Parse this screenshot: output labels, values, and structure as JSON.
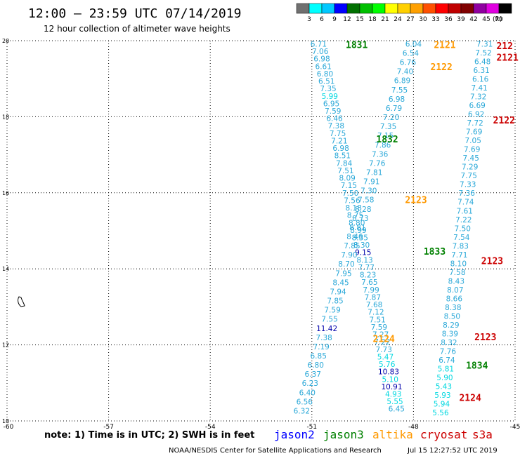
{
  "header": {
    "title": "12:00 — 23:59 UTC 07/14/2019",
    "subtitle": "12 hour collection of altimeter wave heights"
  },
  "colorbar": {
    "unit": "(ft)",
    "colors": [
      "#707070",
      "#00ffff",
      "#00c8ff",
      "#0000ff",
      "#007000",
      "#00c000",
      "#00ff00",
      "#ffff00",
      "#ffd000",
      "#ffa000",
      "#ff5000",
      "#ff0000",
      "#c00000",
      "#800000",
      "#9000a0",
      "#e000e0",
      "#000000"
    ],
    "labels": [
      "3",
      "6",
      "9",
      "12",
      "15",
      "18",
      "21",
      "24",
      "27",
      "30",
      "33",
      "36",
      "39",
      "42",
      "45",
      "70"
    ]
  },
  "footer": {
    "note": "note: 1) Time is in UTC; 2) SWH is in feet",
    "credit": "NOAA/NESDIS Center for Satellite Applications and Research",
    "timestamp": "Jul 15 12:27:52 UTC 2019"
  },
  "chart_data": {
    "type": "scatter",
    "xlim": [
      -60,
      -45
    ],
    "ylim": [
      10,
      20
    ],
    "x_ticks": [
      "-60",
      "-57",
      "-54",
      "-51",
      "-48",
      "-45"
    ],
    "y_ticks": [
      "10",
      "12",
      "14",
      "16",
      "18",
      "20"
    ],
    "grid": true,
    "legend": [
      {
        "name": "jason2",
        "color": "#0000ff"
      },
      {
        "name": "jason3",
        "color": "#008000"
      },
      {
        "name": "altika",
        "color": "#ff9900"
      },
      {
        "name": "cryosat",
        "color": "#cc0000"
      },
      {
        "name": "s3a",
        "color": "#cc0000"
      }
    ],
    "tracks": [
      {
        "x0": -50.8,
        "y0": 19.9,
        "x1": -48.5,
        "y1": 10.3,
        "color": "#2aa8d8",
        "values": [
          "6.71",
          "7.06",
          "6.98",
          "6.61",
          "6.80",
          "6.51",
          "7.35",
          "5.99",
          "6.95",
          "7.59",
          "6.46",
          "7.38",
          "7.75",
          "7.21",
          "6.98",
          "8.51",
          "7.84",
          "7.51",
          "8.09",
          "7.15",
          "7.50",
          "7.56",
          "8.18",
          "8.75",
          "8.80",
          "8.99",
          "8.35",
          "8.30",
          "9.15",
          "8.13",
          "7.77",
          "8.23",
          "7.65",
          "7.99",
          "7.87",
          "7.68",
          "7.12",
          "7.51",
          "7.59",
          "7.27",
          "7.22",
          "7.73",
          "5.47",
          "5.76",
          "10.83",
          "5.10",
          "10.91",
          "4.93",
          "5.55",
          "6.45"
        ]
      },
      {
        "x0": -48.0,
        "y0": 19.9,
        "x1": -51.3,
        "y1": 10.25,
        "color": "#2aa8d8",
        "values": [
          "6.04",
          "6.54",
          "6.76",
          "7.40",
          "6.89",
          "7.55",
          "6.98",
          "6.79",
          "7.20",
          "7.35",
          "7.15",
          "7.86",
          "7.36",
          "7.76",
          "7.81",
          "7.91",
          "7.30",
          "7.58",
          "8.28",
          "8.73",
          "8.81",
          "8.46",
          "7.85",
          "7.90",
          "8.70",
          "7.95",
          "8.45",
          "7.94",
          "7.85",
          "7.59",
          "7.55",
          "11.42",
          "7.38",
          "7.19",
          "6.85",
          "6.80",
          "6.37",
          "6.23",
          "6.40",
          "6.56",
          "6.32"
        ]
      },
      {
        "x0": -45.9,
        "y0": 19.9,
        "x1": -47.2,
        "y1": 10.2,
        "color": "#2aa8d8",
        "values": [
          "7.31",
          "7.52",
          "6.48",
          "6.31",
          "6.16",
          "7.41",
          "7.32",
          "6.69",
          "6.92",
          "7.72",
          "7.69",
          "7.05",
          "7.69",
          "7.45",
          "7.29",
          "7.75",
          "7.33",
          "7.36",
          "7.74",
          "7.61",
          "7.22",
          "7.50",
          "7.54",
          "7.83",
          "7.71",
          "8.10",
          "7.58",
          "8.43",
          "8.07",
          "8.66",
          "8.38",
          "8.50",
          "8.29",
          "8.39",
          "8.32",
          "7.76",
          "6.74",
          "5.81",
          "5.90",
          "5.43",
          "5.93",
          "5.94",
          "5.56"
        ]
      }
    ],
    "annotations": [
      {
        "text": "1831",
        "x": -50.0,
        "y": 19.88,
        "color": "#008000"
      },
      {
        "text": "2121",
        "x": -47.4,
        "y": 19.88,
        "color": "#ff9900"
      },
      {
        "text": "212",
        "x": -45.55,
        "y": 19.85,
        "color": "#cc0000"
      },
      {
        "text": "2121",
        "x": -45.55,
        "y": 19.55,
        "color": "#cc0000"
      },
      {
        "text": "2122",
        "x": -47.5,
        "y": 19.3,
        "color": "#ff9900"
      },
      {
        "text": "2122",
        "x": -45.65,
        "y": 17.9,
        "color": "#cc0000"
      },
      {
        "text": "1832",
        "x": -49.1,
        "y": 17.4,
        "color": "#008000"
      },
      {
        "text": "2123",
        "x": -48.25,
        "y": 15.8,
        "color": "#ff9900"
      },
      {
        "text": "1833",
        "x": -47.7,
        "y": 14.45,
        "color": "#008000"
      },
      {
        "text": "2123",
        "x": -46.0,
        "y": 14.2,
        "color": "#cc0000"
      },
      {
        "text": "2124",
        "x": -49.2,
        "y": 12.15,
        "color": "#ff9900"
      },
      {
        "text": "2123",
        "x": -46.2,
        "y": 12.2,
        "color": "#cc0000"
      },
      {
        "text": "1834",
        "x": -46.45,
        "y": 11.45,
        "color": "#008000"
      },
      {
        "text": "2124",
        "x": -46.65,
        "y": 10.6,
        "color": "#cc0000"
      }
    ]
  }
}
